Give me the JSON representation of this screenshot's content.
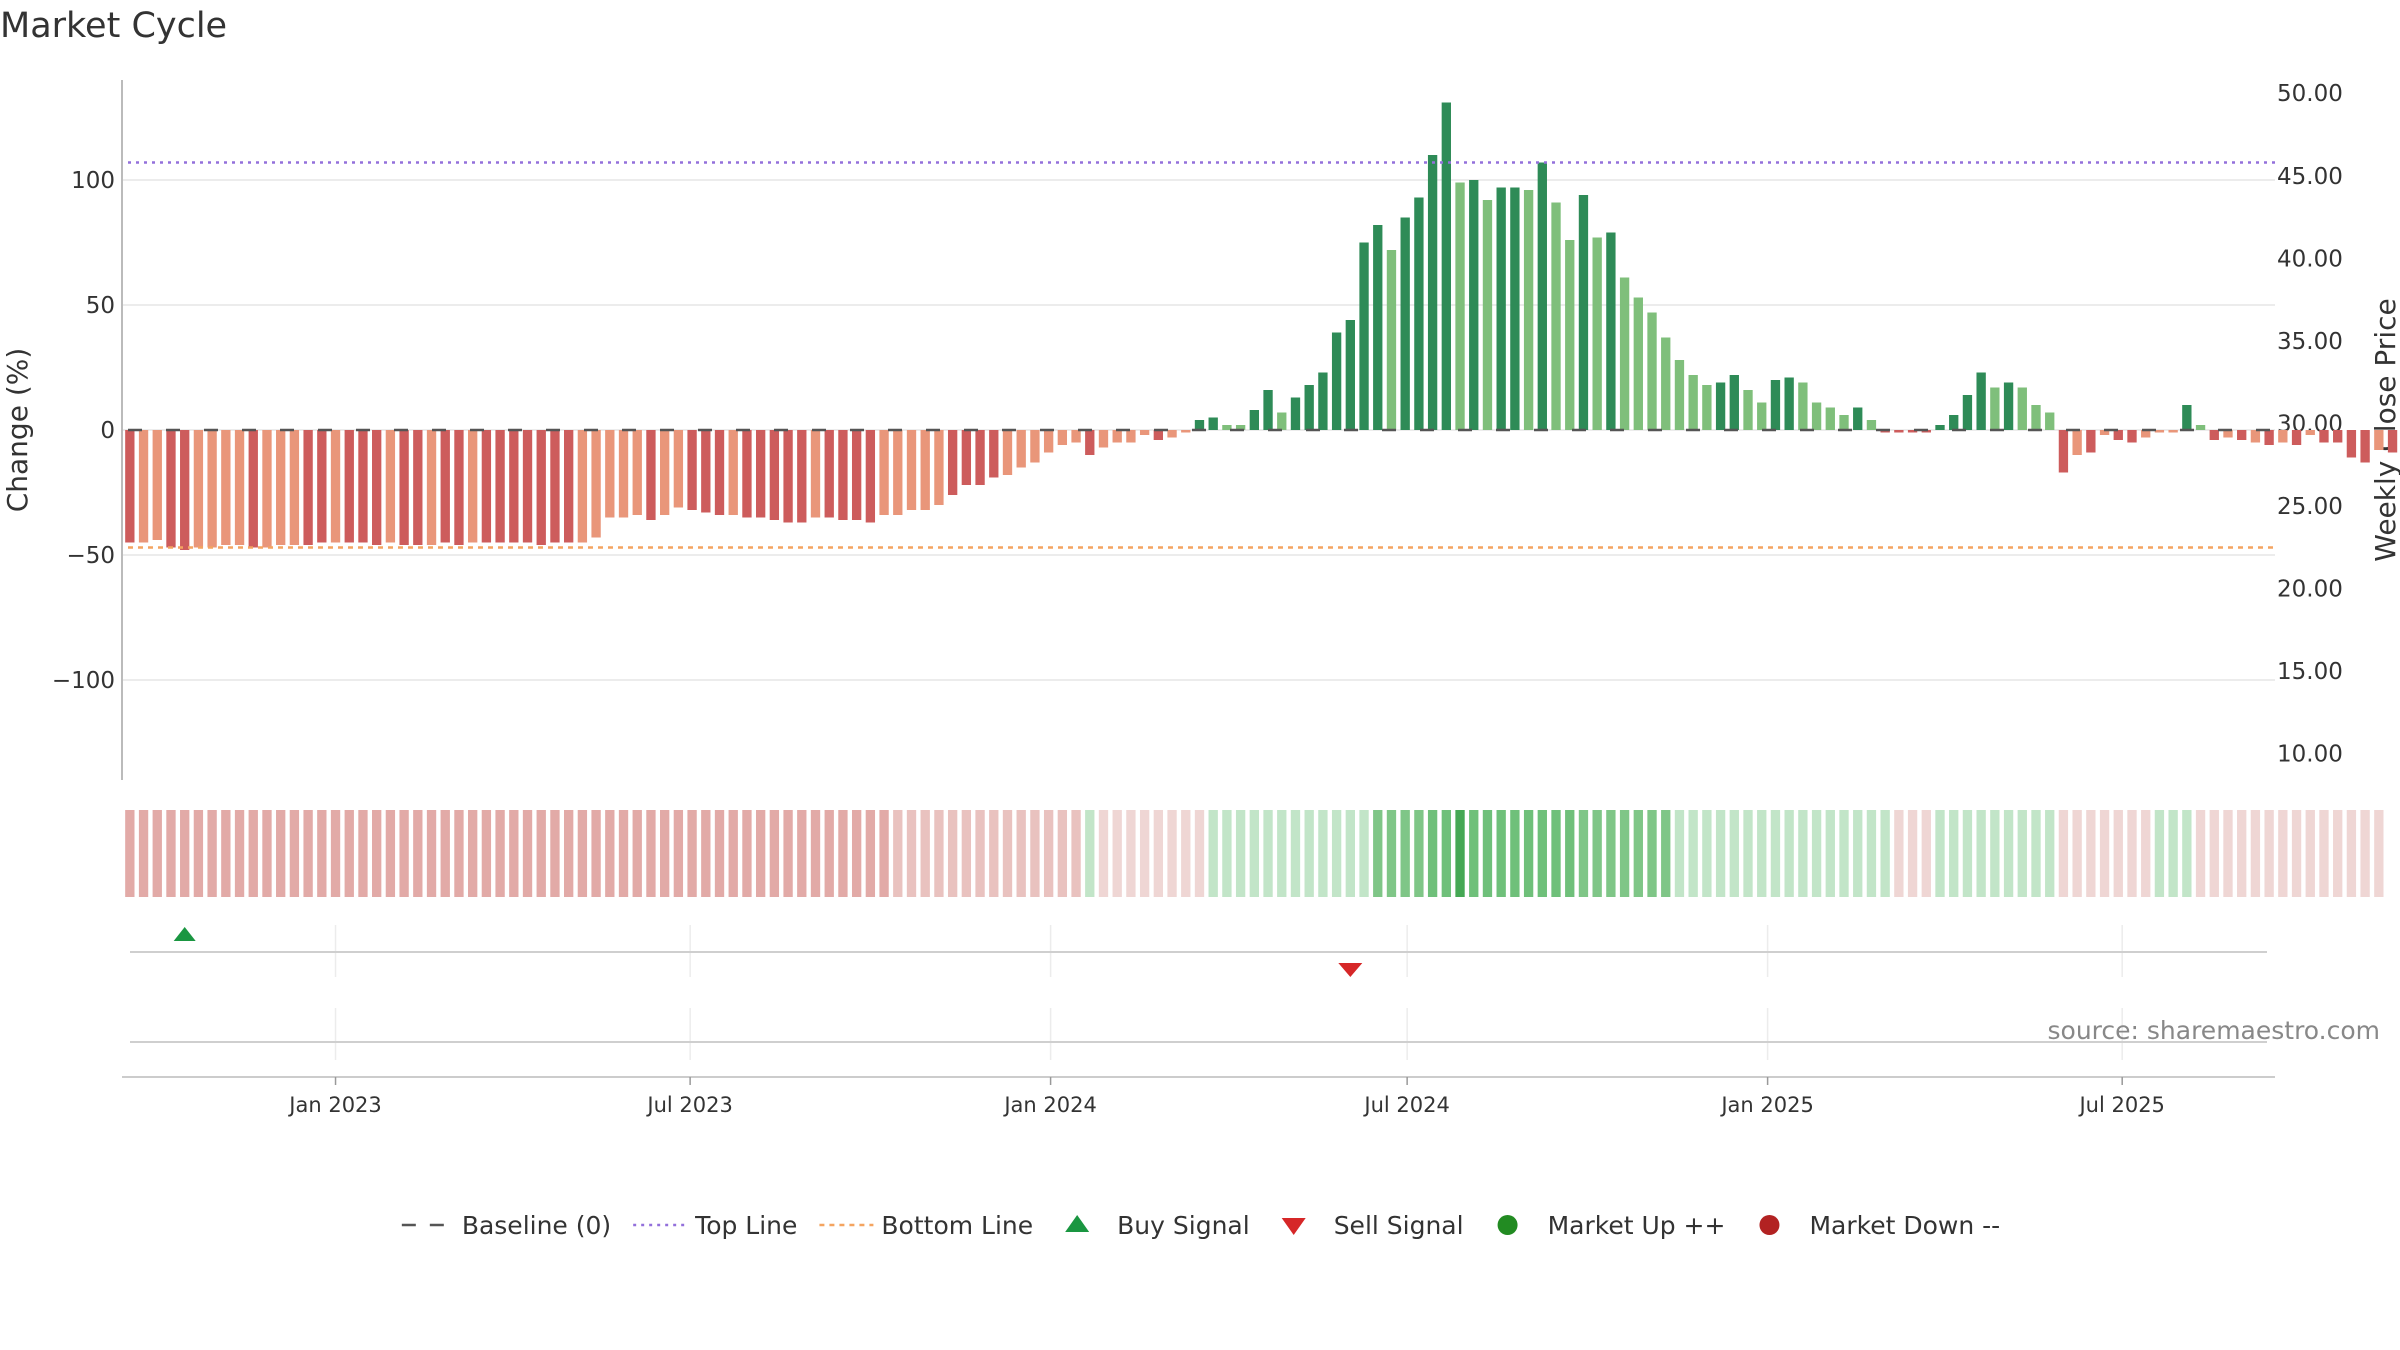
{
  "chart_data": {
    "type": "bar",
    "title": "Market Cycle",
    "ylabel_left": "Change (%)",
    "ylabel_right": "Weekly Close Price",
    "y_left_ticks": [
      "100",
      "50",
      "0",
      "−50",
      "−100"
    ],
    "y_left_tick_values": [
      100,
      50,
      0,
      -50,
      -100
    ],
    "y_left_range": [
      -140,
      140
    ],
    "y_right_ticks": [
      "50.00",
      "45.00",
      "40.00",
      "35.00",
      "30.00",
      "25.00",
      "20.00",
      "15.00",
      "10.00"
    ],
    "y_right_tick_values": [
      50,
      45,
      40,
      35,
      30,
      25,
      20,
      15,
      10
    ],
    "y_right_range": [
      8.4,
      50.8
    ],
    "x_ticks": [
      {
        "label": "Jan 2023",
        "date": "2023-01-01"
      },
      {
        "label": "Jul 2023",
        "date": "2023-07-01"
      },
      {
        "label": "Jan 2024",
        "date": "2024-01-01"
      },
      {
        "label": "Jul 2024",
        "date": "2024-07-01"
      },
      {
        "label": "Jan 2025",
        "date": "2025-01-01"
      },
      {
        "label": "Jul 2025",
        "date": "2025-07-01"
      }
    ],
    "x_range": [
      "2022-09-14",
      "2025-09-17"
    ],
    "first_week": "2022-09-18",
    "week_step_days": 7,
    "top_line": 107,
    "bottom_line": -47,
    "baseline": 0,
    "colors": {
      "strong_up": "#2e8b57",
      "weak_up": "#7fbf7b",
      "strong_down": "#cd5c5c",
      "weak_down": "#e9967a",
      "top_line": "#9370db",
      "bottom_line": "#f4a460",
      "baseline": "#555555",
      "buy": "#1a9641",
      "sell": "#d62728",
      "market_up": "#228b22",
      "market_down": "#b22222"
    },
    "series": [
      {
        "name": "Change (%)",
        "values": [
          -45,
          -45,
          -44,
          -47,
          -48,
          -47,
          -47,
          -46,
          -46,
          -47,
          -47,
          -46,
          -46,
          -46,
          -45,
          -45,
          -45,
          -45,
          -46,
          -45,
          -46,
          -46,
          -46,
          -45,
          -46,
          -45,
          -45,
          -45,
          -45,
          -45,
          -46,
          -45,
          -45,
          -45,
          -43,
          -35,
          -35,
          -34,
          -36,
          -34,
          -31,
          -32,
          -33,
          -34,
          -34,
          -35,
          -35,
          -36,
          -37,
          -37,
          -35,
          -35,
          -36,
          -36,
          -37,
          -34,
          -34,
          -32,
          -32,
          -30,
          -26,
          -22,
          -22,
          -19,
          -18,
          -15,
          -13,
          -9,
          -6,
          -5,
          -10,
          -7,
          -5,
          -5,
          -2,
          -4,
          -3,
          -1,
          4,
          5,
          2,
          2,
          8,
          16,
          7,
          13,
          18,
          23,
          39,
          44,
          75,
          82,
          72,
          85,
          93,
          110,
          131,
          99,
          100,
          92,
          97,
          97,
          96,
          107,
          91,
          76,
          94,
          77,
          79,
          61,
          53,
          47,
          37,
          28,
          22,
          18,
          19,
          22,
          16,
          11,
          20,
          21,
          19,
          11,
          9,
          6,
          9,
          4,
          -1,
          -1,
          -1,
          -1,
          2,
          6,
          14,
          23,
          17,
          19,
          17,
          10,
          7,
          -17,
          -10,
          -9,
          -2,
          -4,
          -5,
          -3,
          -1,
          -1,
          10,
          2,
          -4,
          -3,
          -4,
          -5,
          -6,
          -5,
          -6,
          -2,
          -5,
          -5,
          -11,
          -13,
          -8,
          -9
        ],
        "colors": [
          "sd",
          "wd",
          "wd",
          "sd",
          "sd",
          "wd",
          "wd",
          "wd",
          "wd",
          "sd",
          "wd",
          "wd",
          "wd",
          "sd",
          "sd",
          "wd",
          "sd",
          "sd",
          "sd",
          "wd",
          "sd",
          "sd",
          "wd",
          "sd",
          "sd",
          "wd",
          "sd",
          "sd",
          "sd",
          "sd",
          "sd",
          "sd",
          "sd",
          "wd",
          "wd",
          "wd",
          "wd",
          "wd",
          "sd",
          "wd",
          "wd",
          "sd",
          "sd",
          "sd",
          "wd",
          "sd",
          "sd",
          "sd",
          "sd",
          "sd",
          "wd",
          "sd",
          "sd",
          "sd",
          "sd",
          "wd",
          "wd",
          "wd",
          "wd",
          "wd",
          "sd",
          "sd",
          "sd",
          "sd",
          "wd",
          "wd",
          "wd",
          "wd",
          "wd",
          "wd",
          "sd",
          "wd",
          "wd",
          "wd",
          "wd",
          "sd",
          "wd",
          "wd",
          "su",
          "su",
          "wu",
          "wu",
          "su",
          "su",
          "wu",
          "su",
          "su",
          "su",
          "su",
          "su",
          "su",
          "su",
          "wu",
          "su",
          "su",
          "su",
          "su",
          "wu",
          "su",
          "wu",
          "su",
          "su",
          "wu",
          "su",
          "wu",
          "wu",
          "su",
          "wu",
          "su",
          "wu",
          "wu",
          "wu",
          "wu",
          "wu",
          "wu",
          "wu",
          "su",
          "su",
          "wu",
          "wu",
          "su",
          "su",
          "wu",
          "wu",
          "wu",
          "wu",
          "su",
          "wu",
          "sd",
          "sd",
          "sd",
          "sd",
          "su",
          "su",
          "su",
          "su",
          "wu",
          "su",
          "wu",
          "wu",
          "wu",
          "sd",
          "wd",
          "sd",
          "wd",
          "sd",
          "sd",
          "wd",
          "wd",
          "wd",
          "su",
          "wu",
          "sd",
          "wd",
          "sd",
          "wd",
          "sd",
          "wd",
          "sd",
          "wd",
          "sd",
          "sd",
          "sd",
          "sd",
          "wd",
          "sd"
        ]
      }
    ],
    "heat_strip": [
      "d2",
      "d2",
      "d2",
      "d2",
      "d2",
      "d2",
      "d2",
      "d2",
      "d2",
      "d2",
      "d2",
      "d2",
      "d2",
      "d2",
      "d2",
      "d2",
      "d2",
      "d2",
      "d2",
      "d2",
      "d2",
      "d2",
      "d2",
      "d2",
      "d2",
      "d2",
      "d2",
      "d2",
      "d2",
      "d2",
      "d2",
      "d2",
      "d2",
      "d2",
      "d2",
      "d2",
      "d2",
      "d2",
      "d2",
      "d2",
      "d2",
      "d2",
      "d2",
      "d2",
      "d2",
      "d2",
      "d2",
      "d2",
      "d2",
      "d2",
      "d2",
      "d2",
      "d2",
      "d2",
      "d2",
      "d2",
      "d1",
      "d1",
      "d1",
      "d1",
      "d1",
      "d1",
      "d1",
      "d1",
      "d1",
      "d1",
      "d1",
      "d1",
      "d1",
      "d1",
      "u1",
      "d0",
      "d0",
      "d0",
      "d0",
      "d0",
      "d0",
      "d0",
      "d0",
      "u1",
      "u1",
      "u1",
      "u1",
      "u1",
      "u1",
      "u1",
      "u1",
      "u1",
      "u1",
      "u1",
      "u1",
      "u2",
      "u2",
      "u2",
      "u2",
      "u3",
      "u3",
      "u4",
      "u3",
      "u3",
      "u3",
      "u3",
      "u3",
      "u3",
      "u3",
      "u3",
      "u2",
      "u2",
      "u2",
      "u2",
      "u2",
      "u2",
      "u2",
      "u1",
      "u1",
      "u1",
      "u1",
      "u1",
      "u1",
      "u1",
      "u1",
      "u1",
      "u1",
      "u1",
      "u1",
      "u1",
      "u1",
      "u1",
      "u1",
      "d0",
      "d0",
      "d0",
      "u1",
      "u1",
      "u1",
      "u1",
      "u1",
      "u1",
      "u1",
      "u1",
      "u1",
      "d0",
      "d0",
      "d0",
      "d0",
      "d0",
      "d0",
      "d0",
      "u1",
      "u1",
      "u1",
      "d0",
      "d0",
      "d0",
      "d0",
      "d0",
      "d0",
      "d0",
      "d0",
      "d0",
      "d0",
      "d0",
      "d0",
      "d0",
      "d0"
    ],
    "heat_colors": {
      "d2": "#e2aaa7",
      "d1": "#e9c2bf",
      "d0": "#efd6d4",
      "u1": "#c2e5c8",
      "u2": "#7fc687",
      "u3": "#6fc07a",
      "u4": "#45a854"
    },
    "buy_signals": [
      4
    ],
    "sell_signals": [
      89
    ],
    "source": "source: sharemaestro.com",
    "legend": [
      {
        "label": "Baseline (0)",
        "symbol": "baseline"
      },
      {
        "label": "Top Line",
        "symbol": "top"
      },
      {
        "label": "Bottom Line",
        "symbol": "bottom"
      },
      {
        "label": "Buy Signal",
        "symbol": "buy"
      },
      {
        "label": "Sell Signal",
        "symbol": "sell"
      },
      {
        "label": "Market Up ++",
        "symbol": "up"
      },
      {
        "label": "Market Down --",
        "symbol": "down"
      }
    ]
  }
}
